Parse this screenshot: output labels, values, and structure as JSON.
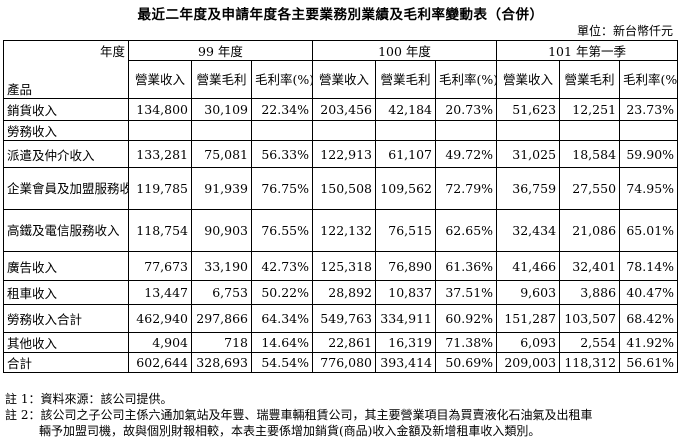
{
  "title": "最近二年度及申請年度各主要業務別業績及毛利率變動表（合併）",
  "unit": "單位：新台幣仟元",
  "header": {
    "corner_top": "年度",
    "corner_bottom": "產品",
    "years": [
      "99 年度",
      "100 年度",
      "101 年第一季"
    ],
    "cols": [
      "營業收入",
      "營業毛利",
      "毛利率(%)"
    ]
  },
  "rows": [
    {
      "label": "銷貨收入",
      "values": [
        "134,800",
        "30,109",
        "22.34%",
        "203,456",
        "42,184",
        "20.73%",
        "51,623",
        "12,251",
        "23.73%"
      ]
    },
    {
      "label": "勞務收入",
      "values": [
        "",
        "",
        "",
        "",
        "",
        "",
        "",
        "",
        ""
      ]
    },
    {
      "label": "派遣及仲介收入",
      "values": [
        "133,281",
        "75,081",
        "56.33%",
        "122,913",
        "61,107",
        "49.72%",
        "31,025",
        "18,584",
        "59.90%"
      ]
    },
    {
      "label": "企業會員及加盟服務收入",
      "values": [
        "119,785",
        "91,939",
        "76.75%",
        "150,508",
        "109,562",
        "72.79%",
        "36,759",
        "27,550",
        "74.95%"
      ]
    },
    {
      "label": "高鐵及電信服務收入",
      "values": [
        "118,754",
        "90,903",
        "76.55%",
        "122,132",
        "76,515",
        "62.65%",
        "32,434",
        "21,086",
        "65.01%"
      ]
    },
    {
      "label": "廣告收入",
      "values": [
        "77,673",
        "33,190",
        "42.73%",
        "125,318",
        "76,890",
        "61.36%",
        "41,466",
        "32,401",
        "78.14%"
      ]
    },
    {
      "label": "租車收入",
      "values": [
        "13,447",
        "6,753",
        "50.22%",
        "28,892",
        "10,837",
        "37.51%",
        "9,603",
        "3,886",
        "40.47%"
      ]
    },
    {
      "label": "勞務收入合計",
      "values": [
        "462,940",
        "297,866",
        "64.34%",
        "549,763",
        "334,911",
        "60.92%",
        "151,287",
        "103,507",
        "68.42%"
      ]
    },
    {
      "label": "其他收入",
      "values": [
        "4,904",
        "718",
        "14.64%",
        "22,861",
        "16,319",
        "71.38%",
        "6,093",
        "2,554",
        "41.92%"
      ]
    },
    {
      "label": "合計",
      "values": [
        "602,644",
        "328,693",
        "54.54%",
        "776,080",
        "393,414",
        "50.69%",
        "209,003",
        "118,312",
        "56.61%"
      ]
    }
  ],
  "notes": {
    "note1": "註 1：資料來源：該公司提供。",
    "note2_line1": "註 2：該公司之子公司主係六通加氣站及年豐、瑞豐車輛租賃公司，其主要營業項目為買賣液化石油氣及出租車",
    "note2_line2": "輛予加盟司機，故與個別財報相較，本表主要係增加銷貨(商品)收入金額及新增租車收入類別。"
  }
}
